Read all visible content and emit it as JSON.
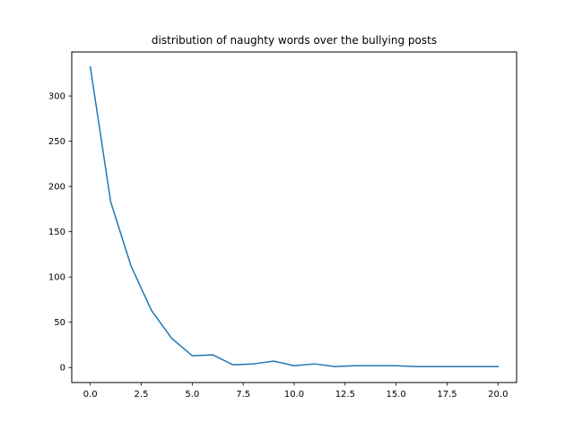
{
  "chart_data": {
    "type": "line",
    "title": "distribution of naughty words over the bullying posts",
    "xlabel": "",
    "ylabel": "",
    "xlim": [
      -0.91,
      20.91
    ],
    "ylim": [
      -16.6,
      348.6
    ],
    "x_ticks": [
      0,
      2.5,
      5,
      7.5,
      10,
      12.5,
      15,
      17.5,
      20
    ],
    "x_tick_labels": [
      "0.0",
      "2.5",
      "5.0",
      "7.5",
      "10.0",
      "12.5",
      "15.0",
      "17.5",
      "20.0"
    ],
    "y_ticks": [
      0,
      50,
      100,
      150,
      200,
      250,
      300
    ],
    "y_tick_labels": [
      "0",
      "50",
      "100",
      "150",
      "200",
      "250",
      "300"
    ],
    "grid": false,
    "series": [
      {
        "color": "#1f77b4",
        "x": [
          0,
          1,
          2,
          3,
          4,
          5,
          6,
          7,
          8,
          9,
          10,
          11,
          12,
          13,
          14,
          15,
          16,
          17,
          18,
          19,
          20
        ],
        "values": [
          332,
          183,
          112,
          63,
          32,
          13,
          14,
          3,
          4,
          7,
          2,
          4,
          1,
          2,
          2,
          2,
          1,
          1,
          1,
          1,
          1
        ]
      }
    ]
  }
}
